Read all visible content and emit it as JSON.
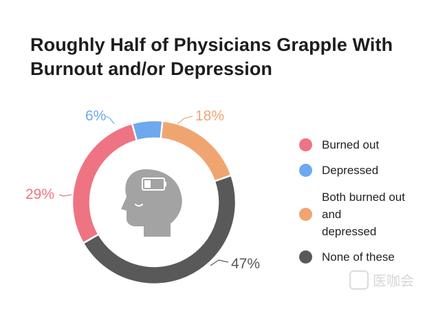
{
  "chart_data": {
    "type": "pie",
    "title": "Roughly Half of Physicians Grapple With Burnout and/or Depression",
    "categories": [
      "Burned out",
      "Depressed",
      "Both burned out and depressed",
      "None of these"
    ],
    "values": [
      29,
      6,
      18,
      47
    ],
    "value_labels": [
      "29%",
      "6%",
      "18%",
      "47%"
    ],
    "colors": [
      "#ee7483",
      "#6ea8ef",
      "#f0a571",
      "#595959"
    ],
    "legend_position": "right",
    "donut": true,
    "center_icon": "head-battery-icon"
  },
  "legend": {
    "items": [
      {
        "label": "Burned out",
        "color": "#ee7483"
      },
      {
        "label": "Depressed",
        "color": "#6ea8ef"
      },
      {
        "label": "Both burned out\nand\ndepressed",
        "color": "#f0a571"
      },
      {
        "label": "None of these",
        "color": "#595959"
      }
    ]
  },
  "watermark": {
    "text": "医咖会"
  }
}
